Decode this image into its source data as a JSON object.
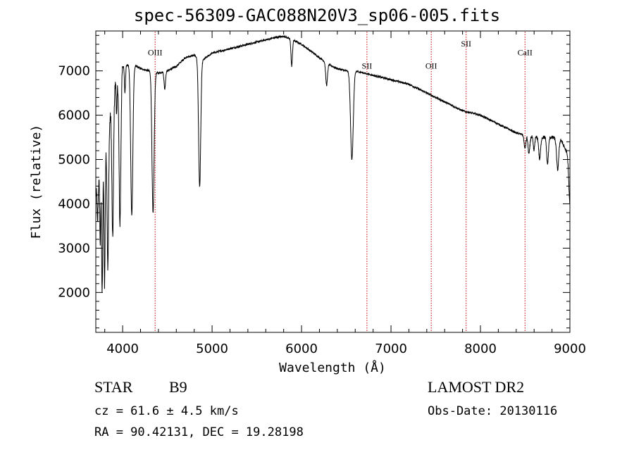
{
  "header": {
    "title": "spec-56309-GAC088N20V3_sp06-005.fits"
  },
  "info": {
    "object_class": "STAR",
    "subclass": "B9",
    "survey": "LAMOST DR2",
    "cz_line": "cz = 61.6 ± 4.5 km/s",
    "obs_date_line": "Obs-Date: 20130116",
    "coords_line": "RA =  90.42131, DEC =  19.28198"
  },
  "chart_data": {
    "type": "line",
    "title": "spec-56309-GAC088N20V3_sp06-005.fits",
    "xlabel": "Wavelength (Å)",
    "ylabel": "Flux (relative)",
    "xlim": [
      3700,
      9000
    ],
    "ylim": [
      1100,
      7900
    ],
    "xticks": [
      4000,
      5000,
      6000,
      7000,
      8000,
      9000
    ],
    "yticks": [
      2000,
      3000,
      4000,
      5000,
      6000,
      7000
    ],
    "grid": false,
    "line_color": "#000000",
    "marker_color": "#cc0000",
    "line_markers": [
      {
        "label": "OIII",
        "x": 4363,
        "label_y": 7350
      },
      {
        "label": "SII",
        "x": 6731,
        "label_y": 7050
      },
      {
        "label": "OII",
        "x": 7450,
        "label_y": 7050
      },
      {
        "label": "SII",
        "x": 7840,
        "label_y": 7550
      },
      {
        "label": "CaII",
        "x": 8498,
        "label_y": 7350
      }
    ],
    "continuum": {
      "x": [
        3700,
        3800,
        3900,
        4000,
        4100,
        4200,
        4300,
        4400,
        4500,
        4600,
        4700,
        4800,
        4900,
        5000,
        5100,
        5200,
        5300,
        5400,
        5500,
        5600,
        5700,
        5800,
        5900,
        6000,
        6100,
        6200,
        6300,
        6400,
        6500,
        6600,
        6700,
        6800,
        6900,
        7000,
        7100,
        7200,
        7300,
        7400,
        7500,
        7600,
        7700,
        7800,
        7900,
        8000,
        8100,
        8200,
        8300,
        8400,
        8500,
        8600,
        8700,
        8800,
        8900,
        9000
      ],
      "y": [
        4200,
        5000,
        6600,
        7100,
        7150,
        7050,
        7000,
        6950,
        7000,
        7100,
        7300,
        7350,
        7250,
        7400,
        7450,
        7500,
        7550,
        7600,
        7650,
        7700,
        7750,
        7780,
        7700,
        7600,
        7450,
        7300,
        7150,
        7050,
        7000,
        7000,
        6950,
        6900,
        6850,
        6800,
        6750,
        6700,
        6600,
        6500,
        6400,
        6300,
        6200,
        6100,
        6050,
        6000,
        5900,
        5800,
        5700,
        5600,
        5550,
        5500,
        5500,
        5500,
        5450,
        5000
      ]
    },
    "absorption_lines": [
      {
        "x": 3720,
        "depth": 800,
        "width": 5
      },
      {
        "x": 3750,
        "depth": 1500,
        "width": 5
      },
      {
        "x": 3771,
        "depth": 2800,
        "width": 6
      },
      {
        "x": 3798,
        "depth": 2800,
        "width": 6
      },
      {
        "x": 3835,
        "depth": 3000,
        "width": 8
      },
      {
        "x": 3889,
        "depth": 3200,
        "width": 9
      },
      {
        "x": 3933,
        "depth": 800,
        "width": 5
      },
      {
        "x": 3970,
        "depth": 3400,
        "width": 10
      },
      {
        "x": 4026,
        "depth": 600,
        "width": 6
      },
      {
        "x": 4102,
        "depth": 3400,
        "width": 12
      },
      {
        "x": 4340,
        "depth": 3200,
        "width": 12
      },
      {
        "x": 4471,
        "depth": 400,
        "width": 8
      },
      {
        "x": 4861,
        "depth": 2900,
        "width": 12
      },
      {
        "x": 5890,
        "depth": 600,
        "width": 8
      },
      {
        "x": 6280,
        "depth": 500,
        "width": 10
      },
      {
        "x": 6563,
        "depth": 2000,
        "width": 15
      },
      {
        "x": 8498,
        "depth": 300,
        "width": 10
      },
      {
        "x": 8542,
        "depth": 400,
        "width": 10
      },
      {
        "x": 8598,
        "depth": 300,
        "width": 8
      },
      {
        "x": 8662,
        "depth": 500,
        "width": 10
      },
      {
        "x": 8750,
        "depth": 600,
        "width": 10
      },
      {
        "x": 8863,
        "depth": 700,
        "width": 12
      },
      {
        "x": 9000,
        "depth": 1000,
        "width": 12
      }
    ]
  }
}
